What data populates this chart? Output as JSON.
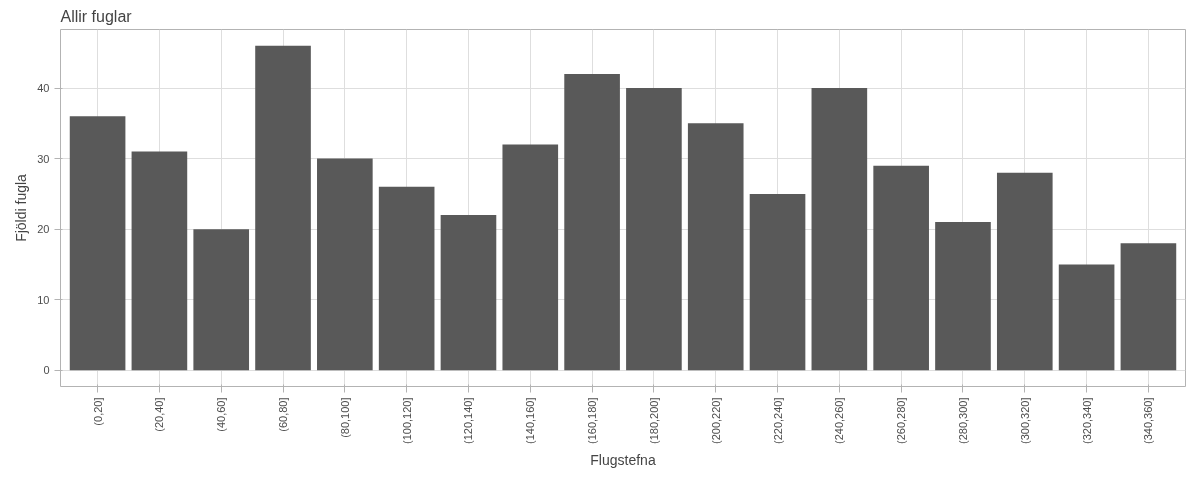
{
  "chart_data": {
    "type": "bar",
    "title": "Allir fuglar",
    "xlabel": "Flugstefna",
    "ylabel": "Fjöldi fugla",
    "categories": [
      "(0,20]",
      "(20,40]",
      "(40,60]",
      "(60,80]",
      "(80,100]",
      "(100,120]",
      "(120,140]",
      "(140,160]",
      "(160,180]",
      "(180,200]",
      "(200,220]",
      "(220,240]",
      "(240,260]",
      "(260,280]",
      "(280,300]",
      "(300,320]",
      "(320,340]",
      "(340,360]"
    ],
    "values": [
      36,
      31,
      20,
      46,
      30,
      26,
      22,
      32,
      42,
      40,
      35,
      25,
      40,
      29,
      21,
      28,
      15,
      18
    ],
    "color": "#595959",
    "ylim": [
      -2.3,
      48.3
    ],
    "yticks": [
      0,
      10,
      20,
      30,
      40
    ],
    "grid": true
  }
}
